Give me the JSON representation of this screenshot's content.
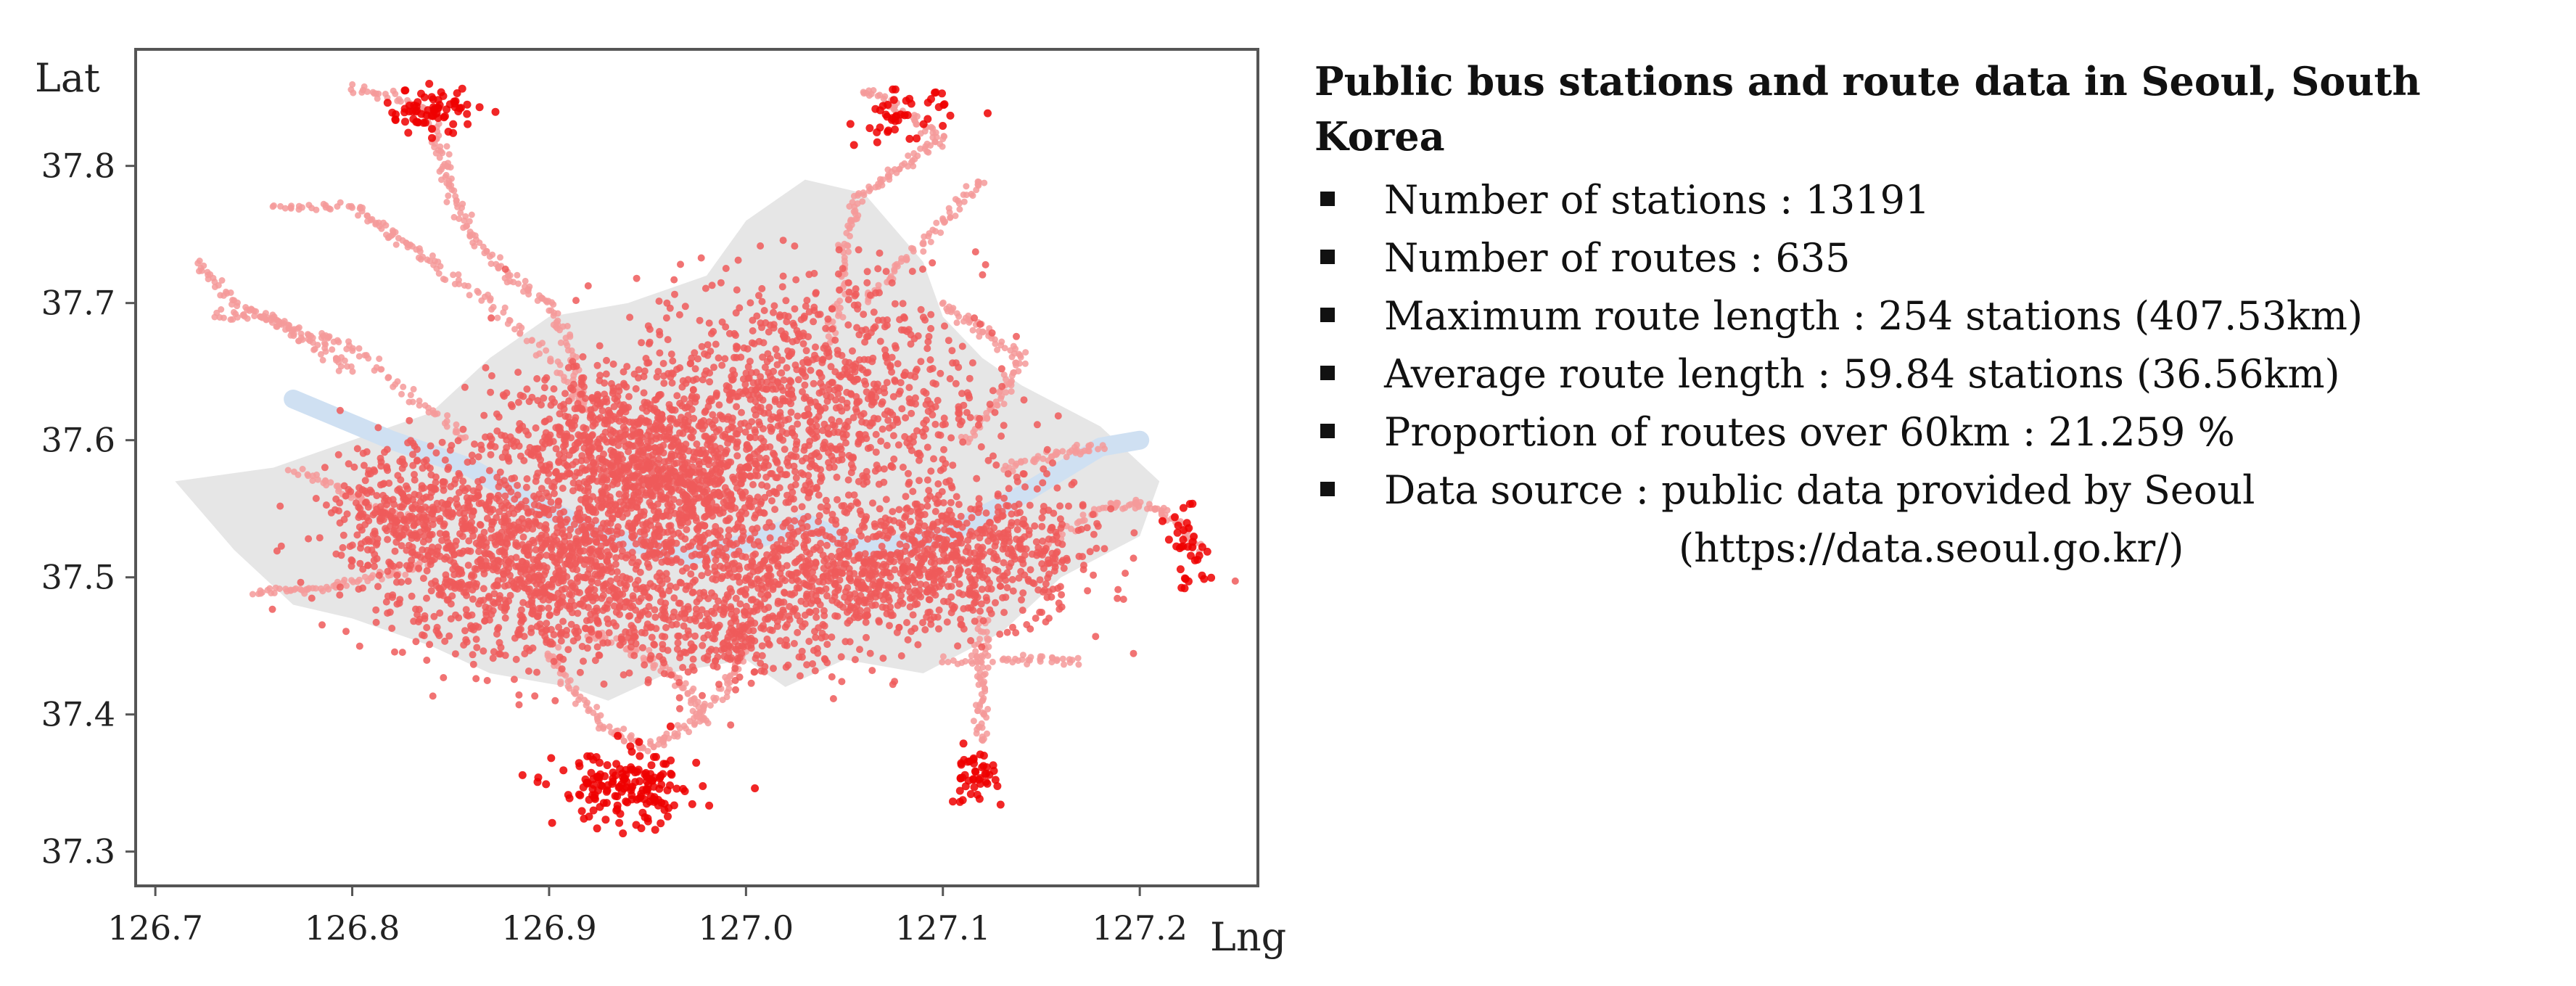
{
  "chart_data": {
    "type": "scatter",
    "title": "",
    "xlabel": "Lng",
    "ylabel": "Lat",
    "xlim": [
      126.69,
      127.26
    ],
    "ylim": [
      37.275,
      37.885
    ],
    "xticks": [
      "126.7",
      "126.8",
      "126.9",
      "127.0",
      "127.1",
      "127.2"
    ],
    "yticks": [
      "37.3",
      "37.4",
      "37.5",
      "37.6",
      "37.7",
      "37.8"
    ],
    "grid": false,
    "legend": "none",
    "colors": {
      "station": "#ef5b5b",
      "station_light": "#f59a9a",
      "station_outlier": "#ee0000",
      "city_area": "#e6e6e6",
      "river": "#cfe0f2"
    },
    "city_outline": [
      [
        126.76,
        37.58
      ],
      [
        126.8,
        37.6
      ],
      [
        126.84,
        37.62
      ],
      [
        126.87,
        37.66
      ],
      [
        126.9,
        37.69
      ],
      [
        126.94,
        37.7
      ],
      [
        126.98,
        37.72
      ],
      [
        127.0,
        37.76
      ],
      [
        127.03,
        37.79
      ],
      [
        127.06,
        37.78
      ],
      [
        127.09,
        37.73
      ],
      [
        127.1,
        37.69
      ],
      [
        127.12,
        37.66
      ],
      [
        127.14,
        37.64
      ],
      [
        127.18,
        37.61
      ],
      [
        127.21,
        37.57
      ],
      [
        127.2,
        37.53
      ],
      [
        127.16,
        37.5
      ],
      [
        127.13,
        37.46
      ],
      [
        127.09,
        37.43
      ],
      [
        127.05,
        37.44
      ],
      [
        127.02,
        37.42
      ],
      [
        127.0,
        37.44
      ],
      [
        126.96,
        37.43
      ],
      [
        126.93,
        37.41
      ],
      [
        126.91,
        37.42
      ],
      [
        126.87,
        37.43
      ],
      [
        126.84,
        37.45
      ],
      [
        126.8,
        37.47
      ],
      [
        126.77,
        37.48
      ],
      [
        126.74,
        37.52
      ],
      [
        126.71,
        37.57
      ]
    ],
    "river": [
      [
        126.77,
        37.63
      ],
      [
        126.82,
        37.6
      ],
      [
        126.86,
        37.58
      ],
      [
        126.89,
        37.555
      ],
      [
        126.93,
        37.53
      ],
      [
        126.97,
        37.515
      ],
      [
        127.0,
        37.525
      ],
      [
        127.03,
        37.54
      ],
      [
        127.06,
        37.52
      ],
      [
        127.1,
        37.53
      ],
      [
        127.14,
        37.56
      ],
      [
        127.18,
        37.595
      ],
      [
        127.2,
        37.6
      ]
    ],
    "clusters": [
      {
        "name": "",
        "cx": 126.9,
        "cy": 37.51,
        "sx": 0.045,
        "sy": 0.035,
        "n": 1300
      },
      {
        "name": "",
        "cx": 127.03,
        "cy": 37.63,
        "sx": 0.045,
        "sy": 0.045,
        "n": 1000
      },
      {
        "name": "",
        "cx": 126.93,
        "cy": 37.6,
        "sx": 0.03,
        "sy": 0.025,
        "n": 600
      },
      {
        "name": "",
        "cx": 127.05,
        "cy": 37.5,
        "sx": 0.04,
        "sy": 0.025,
        "n": 700
      },
      {
        "name": "",
        "cx": 127.12,
        "cy": 37.52,
        "sx": 0.03,
        "sy": 0.025,
        "n": 450
      },
      {
        "name": "",
        "cx": 126.83,
        "cy": 37.55,
        "sx": 0.02,
        "sy": 0.025,
        "n": 300
      },
      {
        "name": "",
        "cx": 126.97,
        "cy": 37.56,
        "sx": 0.025,
        "sy": 0.02,
        "n": 400
      },
      {
        "name": "",
        "cx": 126.99,
        "cy": 37.46,
        "sx": 0.03,
        "sy": 0.02,
        "n": 250
      }
    ],
    "route_lines": [
      [
        [
          126.8,
          37.857
        ],
        [
          126.83,
          37.845
        ],
        [
          126.84,
          37.835
        ],
        [
          126.845,
          37.81
        ],
        [
          126.85,
          37.78
        ],
        [
          126.86,
          37.75
        ],
        [
          126.88,
          37.72
        ],
        [
          126.9,
          37.7
        ],
        [
          126.91,
          37.67
        ],
        [
          126.92,
          37.62
        ]
      ],
      [
        [
          126.76,
          37.77
        ],
        [
          126.8,
          37.77
        ],
        [
          126.82,
          37.75
        ],
        [
          126.84,
          37.73
        ],
        [
          126.87,
          37.7
        ],
        [
          126.9,
          37.66
        ],
        [
          126.92,
          37.62
        ]
      ],
      [
        [
          126.72,
          37.73
        ],
        [
          126.74,
          37.7
        ],
        [
          126.77,
          37.68
        ],
        [
          126.8,
          37.67
        ],
        [
          126.83,
          37.63
        ],
        [
          126.86,
          37.6
        ]
      ],
      [
        [
          126.73,
          37.69
        ],
        [
          126.76,
          37.69
        ],
        [
          126.78,
          37.67
        ],
        [
          126.8,
          37.65
        ]
      ],
      [
        [
          127.06,
          37.855
        ],
        [
          127.08,
          37.84
        ],
        [
          127.1,
          37.82
        ],
        [
          127.08,
          37.8
        ],
        [
          127.06,
          37.78
        ],
        [
          127.05,
          37.75
        ],
        [
          127.05,
          37.71
        ],
        [
          127.04,
          37.67
        ]
      ],
      [
        [
          127.12,
          37.79
        ],
        [
          127.1,
          37.76
        ],
        [
          127.08,
          37.73
        ],
        [
          127.06,
          37.7
        ]
      ],
      [
        [
          127.1,
          37.7
        ],
        [
          127.12,
          37.68
        ],
        [
          127.14,
          37.66
        ],
        [
          127.13,
          37.63
        ],
        [
          127.11,
          37.6
        ]
      ],
      [
        [
          126.75,
          37.49
        ],
        [
          126.78,
          37.49
        ],
        [
          126.81,
          37.5
        ],
        [
          126.84,
          37.51
        ]
      ],
      [
        [
          126.77,
          37.58
        ],
        [
          126.8,
          37.56
        ],
        [
          126.83,
          37.54
        ]
      ],
      [
        [
          126.9,
          37.45
        ],
        [
          126.91,
          37.42
        ],
        [
          126.93,
          37.39
        ],
        [
          126.95,
          37.375
        ],
        [
          126.97,
          37.39
        ],
        [
          126.99,
          37.42
        ],
        [
          127.0,
          37.45
        ]
      ],
      [
        [
          127.12,
          37.38
        ],
        [
          127.12,
          37.41
        ],
        [
          127.12,
          37.44
        ],
        [
          127.12,
          37.47
        ]
      ],
      [
        [
          127.1,
          37.44
        ],
        [
          127.14,
          37.44
        ],
        [
          127.17,
          37.44
        ]
      ],
      [
        [
          127.13,
          37.58
        ],
        [
          127.16,
          37.59
        ],
        [
          127.18,
          37.595
        ]
      ],
      [
        [
          127.15,
          37.52
        ],
        [
          127.18,
          37.55
        ],
        [
          127.2,
          37.555
        ],
        [
          127.22,
          37.54
        ],
        [
          127.23,
          37.52
        ]
      ],
      [
        [
          126.92,
          37.46
        ],
        [
          126.95,
          37.44
        ],
        [
          126.97,
          37.42
        ],
        [
          126.98,
          37.39
        ]
      ]
    ],
    "outlier_groups": [
      {
        "cx": 126.84,
        "cy": 37.84,
        "sx": 0.012,
        "sy": 0.008,
        "n": 70
      },
      {
        "cx": 127.08,
        "cy": 37.835,
        "sx": 0.012,
        "sy": 0.01,
        "n": 45
      },
      {
        "cx": 126.94,
        "cy": 37.345,
        "sx": 0.018,
        "sy": 0.014,
        "n": 170
      },
      {
        "cx": 127.115,
        "cy": 37.355,
        "sx": 0.006,
        "sy": 0.01,
        "n": 45
      },
      {
        "cx": 127.225,
        "cy": 37.52,
        "sx": 0.006,
        "sy": 0.014,
        "n": 35
      }
    ]
  },
  "info": {
    "title": "Public bus stations and route data in Seoul, South Korea",
    "items": [
      "Number of stations : 13191",
      "Number of routes : 635",
      "Maximum route length : 254 stations (407.53km)",
      "Average route length : 59.84 stations (36.56km)",
      "Proportion of routes over 60km : 21.259 %",
      "Data source : public data provided by Seoul"
    ],
    "source_url": "(https://data.seoul.go.kr/)"
  }
}
